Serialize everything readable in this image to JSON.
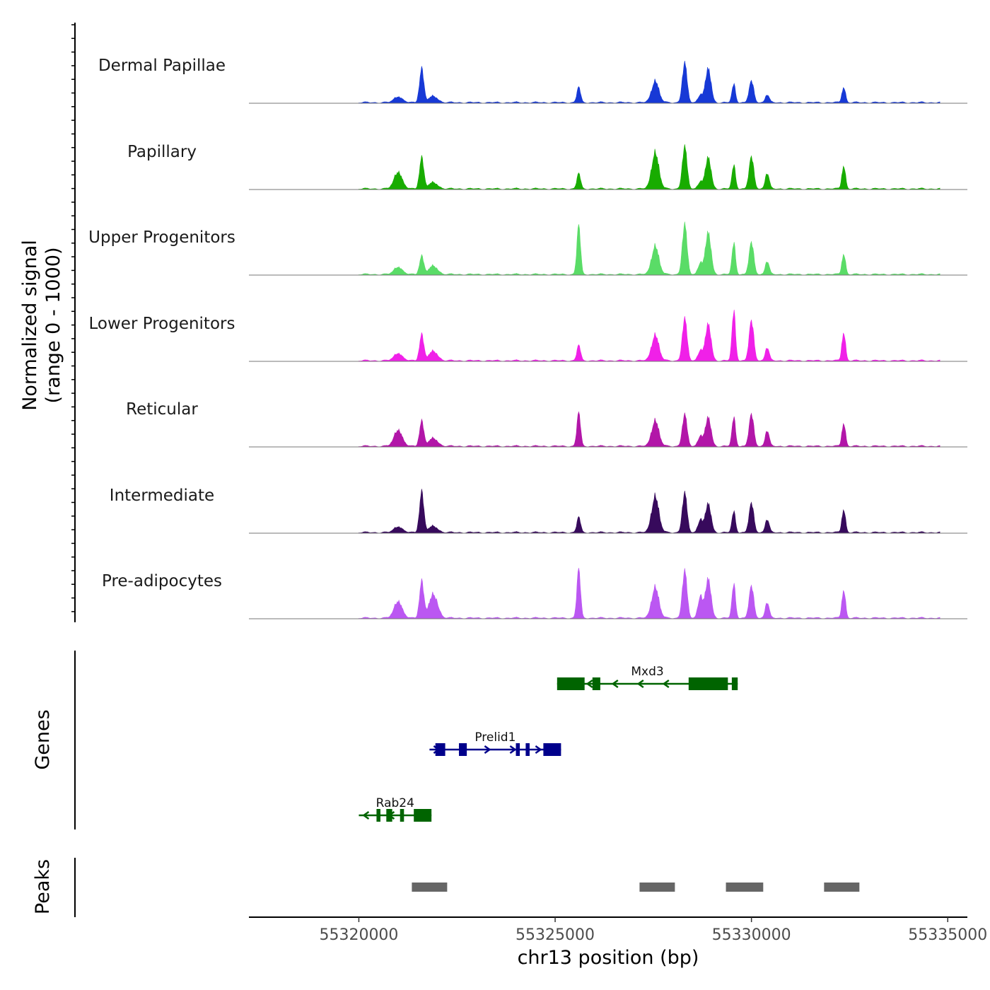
{
  "chart_data": {
    "type": "area",
    "title": "",
    "ylabel_line1": "Normalized signal",
    "ylabel_line2": "(range 0 - 1000)",
    "xlabel": "chr13 position (bp)",
    "xlim": [
      55317200,
      55335500
    ],
    "xticks": [
      55320000,
      55325000,
      55330000,
      55335000
    ],
    "xtick_labels": [
      "55320000",
      "55325000",
      "55330000",
      "55335000"
    ],
    "signal_range": [
      0,
      1000
    ],
    "tracks": [
      {
        "name": "Dermal Papillae",
        "color": "#1739d6",
        "scale": 1.0,
        "w": [
          0.65,
          0.3,
          0.42,
          0.75,
          0.65,
          0.35,
          0.4,
          0.15,
          0.3,
          0.12,
          0.12,
          0.15
        ]
      },
      {
        "name": "Papillary",
        "color": "#18ac00",
        "scale": 1.0,
        "w": [
          0.6,
          0.3,
          0.7,
          0.8,
          0.6,
          0.45,
          0.6,
          0.3,
          0.45,
          0.33,
          0.12,
          0.14
        ]
      },
      {
        "name": "Upper Progenitors",
        "color": "#5adc67",
        "scale": 1.0,
        "w": [
          0.35,
          0.95,
          0.55,
          0.95,
          0.8,
          0.6,
          0.6,
          0.25,
          0.4,
          0.15,
          0.16,
          0.22
        ]
      },
      {
        "name": "Lower Progenitors",
        "color": "#f020e8",
        "scale": 1.0,
        "w": [
          0.5,
          0.3,
          0.5,
          0.8,
          0.7,
          0.95,
          0.75,
          0.25,
          0.55,
          0.15,
          0.18,
          0.2
        ]
      },
      {
        "name": "Reticular",
        "color": "#b216a8",
        "scale": 1.0,
        "w": [
          0.48,
          0.65,
          0.5,
          0.6,
          0.55,
          0.55,
          0.6,
          0.3,
          0.45,
          0.32,
          0.15,
          0.2
        ]
      },
      {
        "name": "Intermediate",
        "color": "#370a5c",
        "scale": 1.0,
        "w": [
          0.78,
          0.3,
          0.7,
          0.75,
          0.55,
          0.4,
          0.55,
          0.25,
          0.45,
          0.12,
          0.12,
          0.25
        ]
      },
      {
        "name": "Pre-adipocytes",
        "color": "#bb57f2",
        "scale": 1.0,
        "w": [
          0.7,
          0.95,
          0.6,
          0.9,
          0.75,
          0.65,
          0.6,
          0.3,
          0.55,
          0.33,
          0.45,
          0.42
        ]
      }
    ],
    "peak_centers": [
      55321600,
      55325600,
      55327550,
      55328300,
      55328900,
      55329550,
      55330000,
      55330400,
      55332350,
      55321000,
      55321900,
      55328700
    ],
    "genes_label": "Genes",
    "genes": [
      {
        "name": "Mxd3",
        "start": 55325050,
        "end": 55329650,
        "strand": "-",
        "color": "#006400",
        "exons": [
          [
            55325050,
            55325750
          ],
          [
            55325950,
            55326150
          ],
          [
            55328400,
            55329400
          ],
          [
            55329500,
            55329650
          ]
        ]
      },
      {
        "name": "Prelid1",
        "start": 55321800,
        "end": 55325150,
        "strand": "+",
        "color": "#00008b",
        "exons": [
          [
            55321950,
            55322200
          ],
          [
            55322550,
            55322750
          ],
          [
            55324000,
            55324100
          ],
          [
            55324250,
            55324350
          ],
          [
            55324700,
            55325150
          ]
        ]
      },
      {
        "name": "Rab24",
        "start": 55320000,
        "end": 55321850,
        "strand": "-",
        "color": "#006400",
        "exons": [
          [
            55320450,
            55320550
          ],
          [
            55320700,
            55320850
          ],
          [
            55321050,
            55321150
          ],
          [
            55321400,
            55321850
          ]
        ]
      }
    ],
    "peaks_label": "Peaks",
    "peaks": [
      [
        55321350,
        55322250
      ],
      [
        55327150,
        55328050
      ],
      [
        55329350,
        55330300
      ],
      [
        55331850,
        55332750
      ]
    ]
  }
}
